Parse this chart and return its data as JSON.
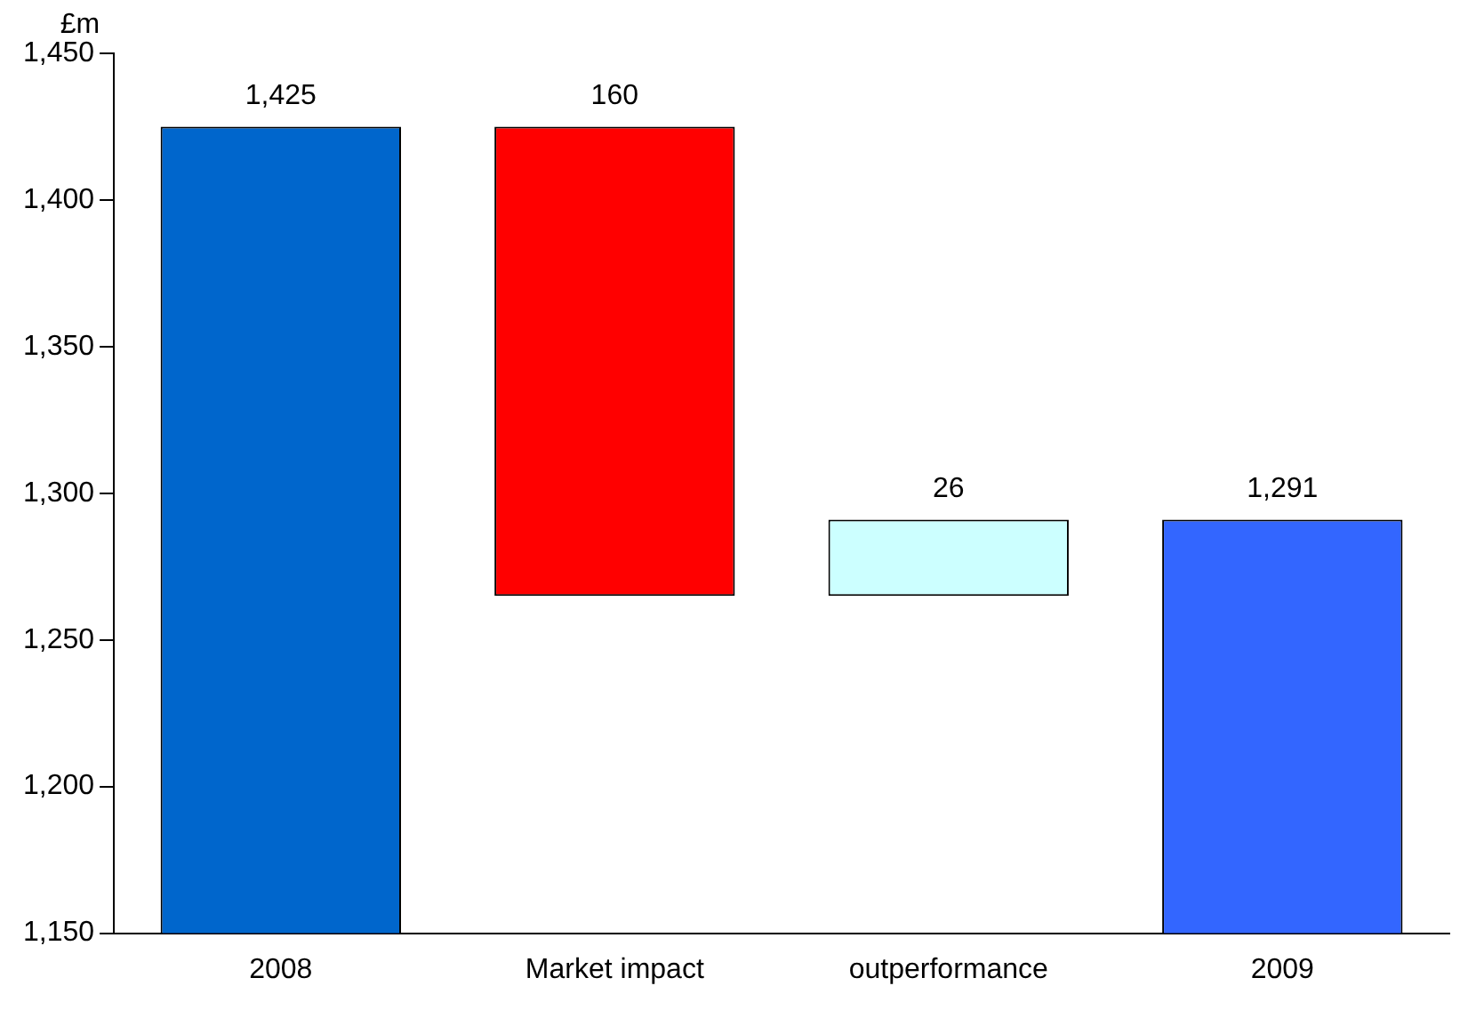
{
  "chart_data": {
    "type": "bar",
    "ylabel": "£m",
    "categories": [
      "2008",
      "Market impact",
      "outperformance",
      "2009"
    ],
    "values": [
      1425,
      160,
      26,
      1291
    ],
    "base": [
      null,
      1265,
      1265,
      null
    ],
    "colors": [
      "#0066cc",
      "#ff0000",
      "#ccffff",
      "#3366ff"
    ],
    "ylim": [
      1150,
      1450
    ],
    "yticks": [
      {
        "value": 1150,
        "label": "1,150"
      },
      {
        "value": 1200,
        "label": "1,200"
      },
      {
        "value": 1250,
        "label": "1,250"
      },
      {
        "value": 1300,
        "label": "1,300"
      },
      {
        "value": 1350,
        "label": "1,350"
      },
      {
        "value": 1400,
        "label": "1,400"
      },
      {
        "value": 1450,
        "label": "1,450"
      }
    ],
    "data_labels": true,
    "value_labels": [
      "1,425",
      "160",
      "26",
      "1,291"
    ],
    "grid": false,
    "legend": false
  }
}
